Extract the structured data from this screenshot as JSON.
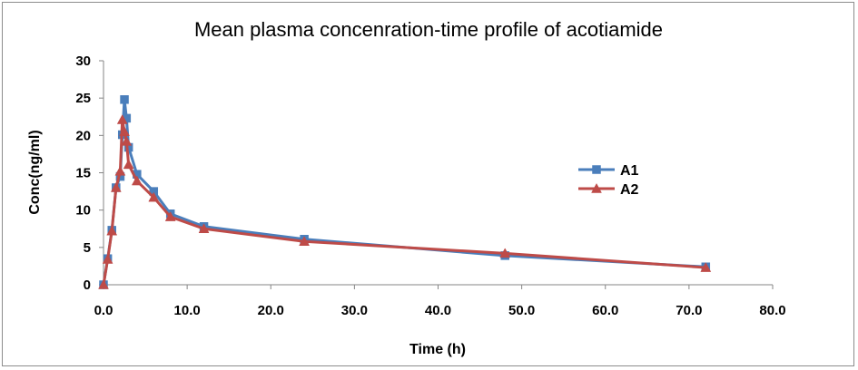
{
  "chart_data": {
    "type": "line",
    "title": "Mean plasma concenration-time profile of acotiamide",
    "xlabel": "Time (h)",
    "ylabel": "Conc(ng/ml)",
    "xlim": [
      0,
      80
    ],
    "ylim": [
      0,
      30
    ],
    "x_ticks": [
      0,
      10,
      20,
      30,
      40,
      50,
      60,
      70,
      80
    ],
    "x_tick_labels": [
      "0.0",
      "10.0",
      "20.0",
      "30.0",
      "40.0",
      "50.0",
      "60.0",
      "70.0",
      "80.0"
    ],
    "y_ticks": [
      0,
      5,
      10,
      15,
      20,
      25,
      30
    ],
    "y_tick_labels": [
      "0",
      "5",
      "10",
      "15",
      "20",
      "25",
      "30"
    ],
    "grid": false,
    "legend_position": "right",
    "series": [
      {
        "name": "A1",
        "color": "#4a7ebb",
        "marker": "square",
        "x": [
          0,
          0.5,
          1,
          1.5,
          2,
          2.25,
          2.5,
          2.75,
          3,
          4,
          6,
          8,
          12,
          24,
          48,
          72
        ],
        "y": [
          0,
          3.5,
          7.3,
          13.0,
          14.5,
          20.1,
          24.8,
          22.3,
          18.4,
          14.8,
          12.5,
          9.5,
          7.8,
          6.1,
          3.9,
          2.4
        ]
      },
      {
        "name": "A2",
        "color": "#be4b48",
        "marker": "triangle",
        "x": [
          0,
          0.5,
          1,
          1.5,
          2,
          2.25,
          2.5,
          2.75,
          3,
          4,
          6,
          8,
          12,
          24,
          48,
          72
        ],
        "y": [
          0,
          3.4,
          7.2,
          13.0,
          15.2,
          22.1,
          20.5,
          19.2,
          16.1,
          13.9,
          11.7,
          9.1,
          7.5,
          5.8,
          4.2,
          2.3
        ]
      }
    ]
  }
}
